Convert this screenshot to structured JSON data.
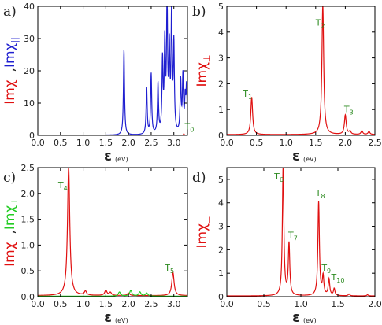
{
  "colors": {
    "red": "#e01010",
    "blue": "#1f1fd0",
    "green": "#22cc22",
    "annot": "#2e8b22"
  },
  "chart_data": [
    {
      "type": "line",
      "panel_label": "a)",
      "ylabel_parts": [
        {
          "text": "Imχ",
          "sub": "⊥",
          "color": "#e01010"
        },
        {
          "text": ",",
          "color": "#222222"
        },
        {
          "text": "Imχ",
          "sub": "||",
          "color": "#1f1fd0"
        }
      ],
      "xlabel": "ε",
      "xlabel_unit": "(eV)",
      "xlim": [
        0,
        3.3
      ],
      "ylim": [
        0,
        40
      ],
      "xticks": [
        0.0,
        0.5,
        1.0,
        1.5,
        2.0,
        2.5,
        3.0
      ],
      "xtick_labels": [
        "0.0",
        "0.5",
        "1.0",
        "1.5",
        "2.0",
        "2.5",
        "3.0"
      ],
      "yticks": [
        0,
        10,
        20,
        30,
        40
      ],
      "ytick_labels": [
        "0",
        "10",
        "20",
        "30",
        "40"
      ],
      "series": [
        {
          "color": "#1f1fd0",
          "width": 0.014,
          "peaks": [
            [
              1.9,
              26.5
            ],
            [
              2.4,
              14.5
            ],
            [
              2.5,
              18.7
            ],
            [
              2.65,
              15.5
            ],
            [
              2.75,
              22
            ],
            [
              2.8,
              27
            ],
            [
              2.85,
              40
            ],
            [
              2.9,
              24.5
            ],
            [
              2.95,
              37
            ],
            [
              3.0,
              27
            ],
            [
              3.15,
              16
            ],
            [
              3.2,
              17.5
            ],
            [
              3.25,
              10
            ],
            [
              3.28,
              14
            ]
          ],
          "baseline": 0.05
        },
        {
          "color": "#e01010",
          "width": 0.01,
          "peaks": [
            [
              3.22,
              0.5
            ]
          ],
          "baseline": 0.02
        }
      ],
      "annotations": [
        {
          "text": "T",
          "sub": "0",
          "x": 3.24,
          "y": 1.8
        }
      ]
    },
    {
      "type": "line",
      "panel_label": "b)",
      "ylabel_parts": [
        {
          "text": "Imχ",
          "sub": "⊥",
          "color": "#e01010"
        }
      ],
      "xlabel": "ε",
      "xlabel_unit": "(eV)",
      "xlim": [
        0,
        2.5
      ],
      "ylim": [
        0,
        5
      ],
      "xticks": [
        0.0,
        0.5,
        1.0,
        1.5,
        2.0,
        2.5
      ],
      "xtick_labels": [
        "0.0",
        "0.5",
        "1.0",
        "1.5",
        "2.0",
        "2.5"
      ],
      "yticks": [
        0,
        1,
        2,
        3,
        4,
        5
      ],
      "ytick_labels": [
        "0",
        "1",
        "2",
        "3",
        "4",
        "5"
      ],
      "series": [
        {
          "color": "#e01010",
          "width": 0.018,
          "peaks": [
            [
              0.42,
              1.45
            ],
            [
              1.62,
              5.0
            ],
            [
              2.0,
              0.75
            ],
            [
              2.08,
              0.12
            ],
            [
              2.28,
              0.14
            ],
            [
              2.4,
              0.12
            ]
          ],
          "baseline": 0.03
        }
      ],
      "annotations": [
        {
          "text": "T",
          "sub": "1",
          "x": 0.27,
          "y": 1.5
        },
        {
          "text": "T",
          "sub": "2",
          "x": 1.5,
          "y": 4.25
        },
        {
          "text": "T",
          "sub": "3",
          "x": 1.98,
          "y": 0.9
        }
      ]
    },
    {
      "type": "line",
      "panel_label": "c)",
      "ylabel_parts": [
        {
          "text": "Imχ",
          "sub": "⊥",
          "color": "#e01010"
        },
        {
          "text": ",",
          "color": "#222222"
        },
        {
          "text": "Imχ",
          "sub": "⊥",
          "color": "#22cc22"
        }
      ],
      "xlabel": "ε",
      "xlabel_unit": "(eV)",
      "xlim": [
        0,
        3.3
      ],
      "ylim": [
        0,
        2.5
      ],
      "xticks": [
        0.0,
        0.5,
        1.0,
        1.5,
        2.0,
        2.5,
        3.0
      ],
      "xtick_labels": [
        "0.0",
        "0.5",
        "1.0",
        "1.5",
        "2.0",
        "2.5",
        "3.0"
      ],
      "yticks": [
        0.0,
        0.5,
        1.0,
        1.5,
        2.0,
        2.5
      ],
      "ytick_labels": [
        "0.0",
        "0.5",
        "1.0",
        "1.5",
        "2.0",
        "2.5"
      ],
      "series": [
        {
          "color": "#e01010",
          "width": 0.03,
          "peaks": [
            [
              0.68,
              2.5
            ],
            [
              1.05,
              0.08
            ],
            [
              1.5,
              0.1
            ],
            [
              1.6,
              0.06
            ],
            [
              2.0,
              0.05
            ],
            [
              2.98,
              0.45
            ]
          ],
          "baseline": 0.02
        },
        {
          "color": "#22cc22",
          "width": 0.03,
          "peaks": [
            [
              1.8,
              0.08
            ],
            [
              2.05,
              0.11
            ],
            [
              2.25,
              0.08
            ],
            [
              2.4,
              0.06
            ]
          ],
          "baseline": 0.01
        }
      ],
      "annotations": [
        {
          "text": "T",
          "sub": "4",
          "x": 0.45,
          "y": 2.1
        },
        {
          "text": "T",
          "sub": "5",
          "x": 2.8,
          "y": 0.5
        }
      ]
    },
    {
      "type": "line",
      "panel_label": "d)",
      "ylabel_parts": [
        {
          "text": "Imχ",
          "sub": "⊥",
          "color": "#e01010"
        }
      ],
      "xlabel": "ε",
      "xlabel_unit": "(eV)",
      "xlim": [
        0,
        2.0
      ],
      "ylim": [
        0,
        5.5
      ],
      "xticks": [
        0.0,
        0.5,
        1.0,
        1.5,
        2.0
      ],
      "xtick_labels": [
        "0.0",
        "0.5",
        "1.0",
        "1.5",
        "2.0"
      ],
      "yticks": [
        0,
        1,
        2,
        3,
        4,
        5
      ],
      "ytick_labels": [
        "0",
        "1",
        "2",
        "3",
        "4",
        "5"
      ],
      "series": [
        {
          "color": "#e01010",
          "width": 0.012,
          "peaks": [
            [
              0.76,
              5.5
            ],
            [
              0.84,
              2.2
            ],
            [
              1.24,
              4.0
            ],
            [
              1.3,
              0.8
            ],
            [
              1.38,
              0.7
            ],
            [
              1.45,
              0.3
            ],
            [
              1.65,
              0.08
            ],
            [
              1.9,
              0.05
            ]
          ],
          "baseline": 0.03
        }
      ],
      "annotations": [
        {
          "text": "T",
          "sub": "6",
          "x": 0.64,
          "y": 5.0
        },
        {
          "text": "T",
          "sub": "7",
          "x": 0.83,
          "y": 2.5
        },
        {
          "text": "T",
          "sub": "8",
          "x": 1.2,
          "y": 4.3
        },
        {
          "text": "T",
          "sub": "9",
          "x": 1.28,
          "y": 1.1
        },
        {
          "text": "T",
          "sub": "10",
          "x": 1.41,
          "y": 0.7
        }
      ]
    }
  ]
}
